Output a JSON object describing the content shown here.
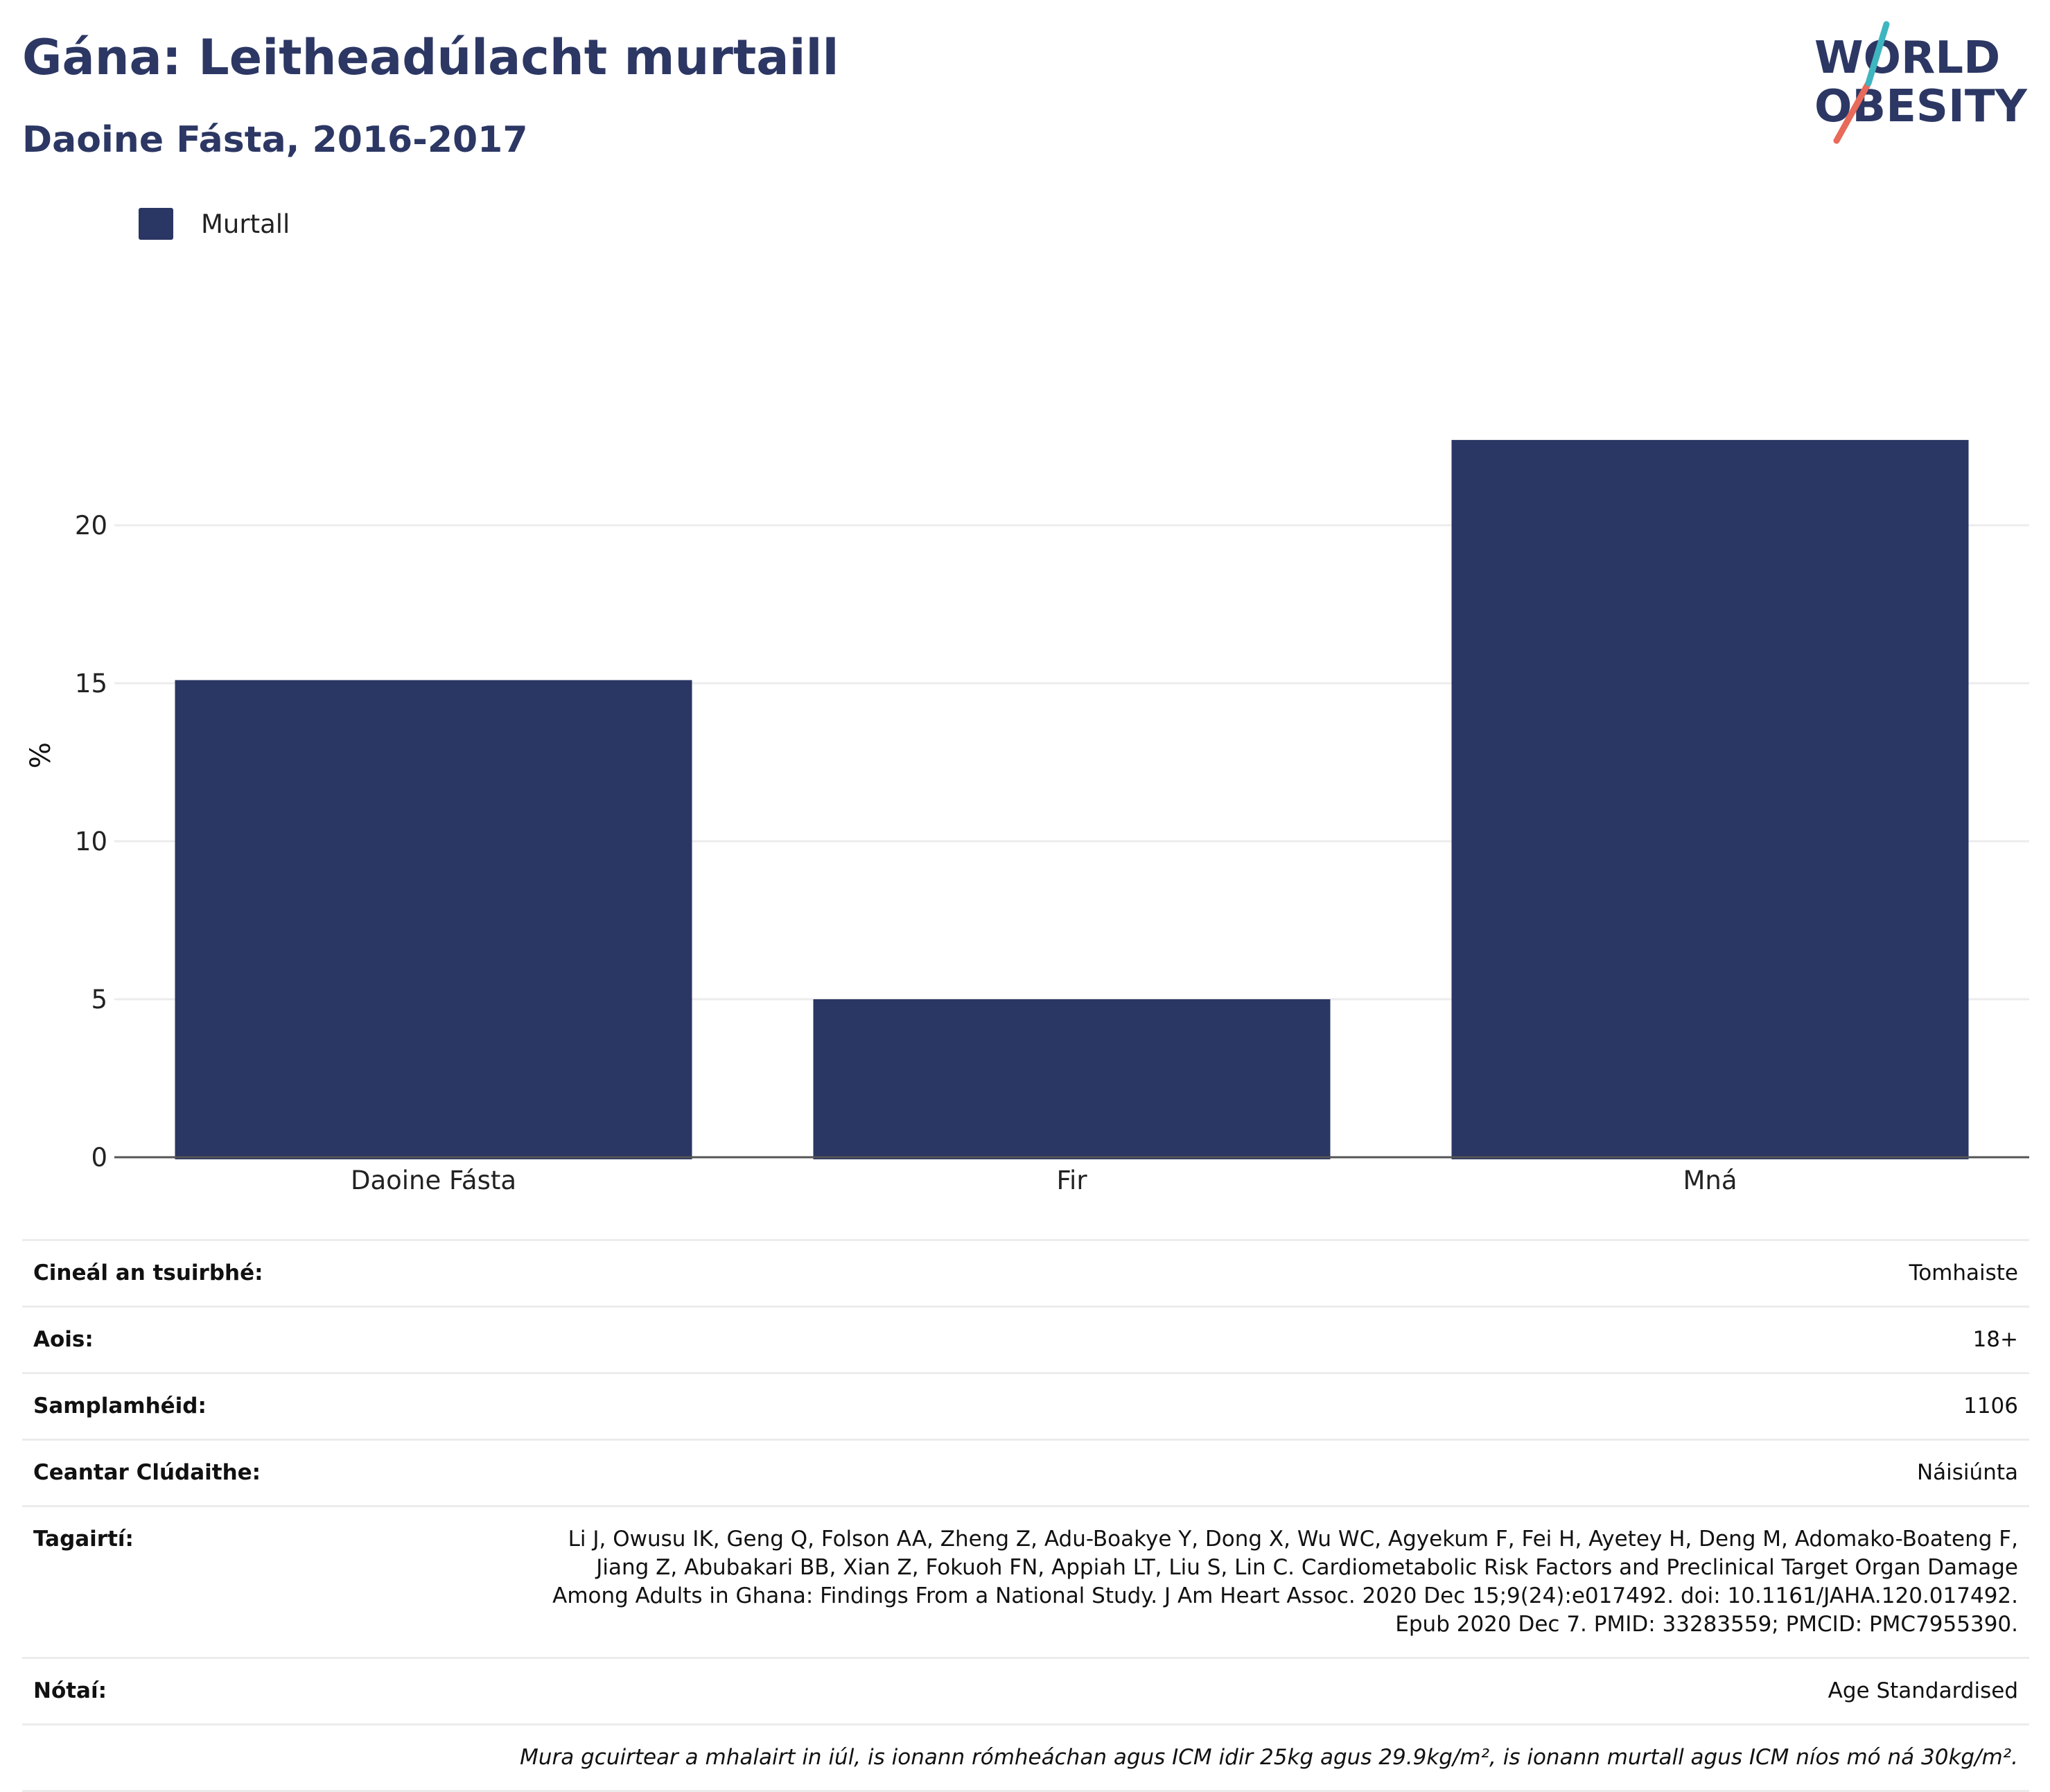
{
  "header": {
    "title": "Gána: Leitheadúlacht murtaill",
    "subtitle": "Daoine Fásta, 2016-2017"
  },
  "logo": {
    "line1": "WORLD",
    "line2": "OBESITY",
    "text_color": "#2c3764",
    "slash_colors": [
      "#e86a5a",
      "#3fb6bf"
    ]
  },
  "legend": {
    "label": "Murtall",
    "color": "#2a3663"
  },
  "chart_data": {
    "type": "bar",
    "categories": [
      "Daoine Fásta",
      "Fir",
      "Mná"
    ],
    "series": [
      {
        "name": "Murtall",
        "values": [
          15.1,
          5.0,
          22.7
        ],
        "color": "#2a3663"
      }
    ],
    "ylabel": "%",
    "xlabel": "",
    "ylim": [
      0,
      25
    ],
    "yticks": [
      0,
      5,
      10,
      15,
      20
    ],
    "grid": true,
    "legend_position": "top-left"
  },
  "info": {
    "survey_type": {
      "label": "Cineál an tsuirbhé:",
      "value": "Tomhaiste"
    },
    "age": {
      "label": "Aois:",
      "value": "18+"
    },
    "sample_size": {
      "label": "Samplamhéid:",
      "value": "1106"
    },
    "area": {
      "label": "Ceantar Clúdaithe:",
      "value": "Náisiúnta"
    },
    "references": {
      "label": "Tagairtí:",
      "value": "Li J, Owusu IK, Geng Q, Folson AA, Zheng Z, Adu-Boakye Y, Dong X, Wu WC, Agyekum F, Fei H, Ayetey H, Deng M, Adomako-Boateng F, Jiang Z, Abubakari BB, Xian Z, Fokuoh FN, Appiah LT, Liu S, Lin C. Cardiometabolic Risk Factors and Preclinical Target Organ Damage Among Adults in Ghana: Findings From a National Study. J Am Heart Assoc. 2020 Dec 15;9(24):e017492. doi: 10.1161/JAHA.120.017492. Epub 2020 Dec 7. PMID: 33283559; PMCID: PMC7955390."
    },
    "notes": {
      "label": "Nótaí:",
      "value": "Age Standardised"
    },
    "footnote": "Mura gcuirtear a mhalairt in iúl, is ionann rómheáchan agus ICM idir 25kg agus 29.9kg/m², is ionann murtall agus ICM níos mó ná 30kg/m²."
  }
}
